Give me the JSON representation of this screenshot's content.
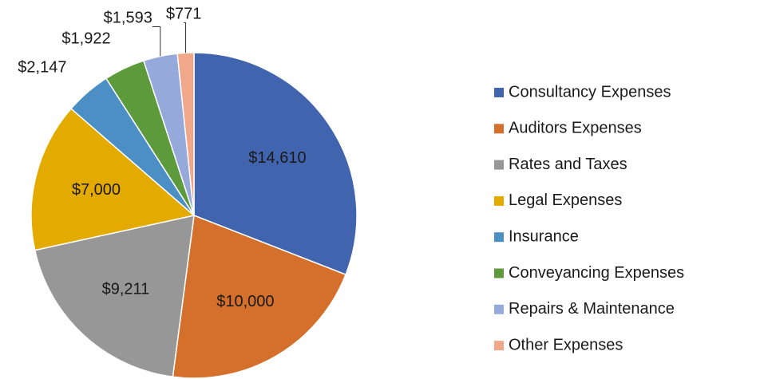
{
  "chart_data": {
    "type": "pie",
    "categories": [
      "Consultancy Expenses",
      "Auditors Expenses",
      "Rates and Taxes",
      "Legal Expenses",
      "Insurance",
      "Conveyancing Expenses",
      "Repairs & Maintenance",
      "Other Expenses"
    ],
    "values": [
      14610,
      10000,
      9211,
      7000,
      2147,
      1922,
      1593,
      771
    ],
    "value_labels": [
      "$14,610",
      "$10,000",
      "$9,211",
      "$7,000",
      "$2,147",
      "$1,922",
      "$1,593",
      "$771"
    ],
    "colors": [
      "#4064ad",
      "#d4702c",
      "#979797",
      "#e3aa00",
      "#4b8fc4",
      "#5d9a3c",
      "#96a9db",
      "#f1a78a"
    ],
    "legend": "right"
  }
}
